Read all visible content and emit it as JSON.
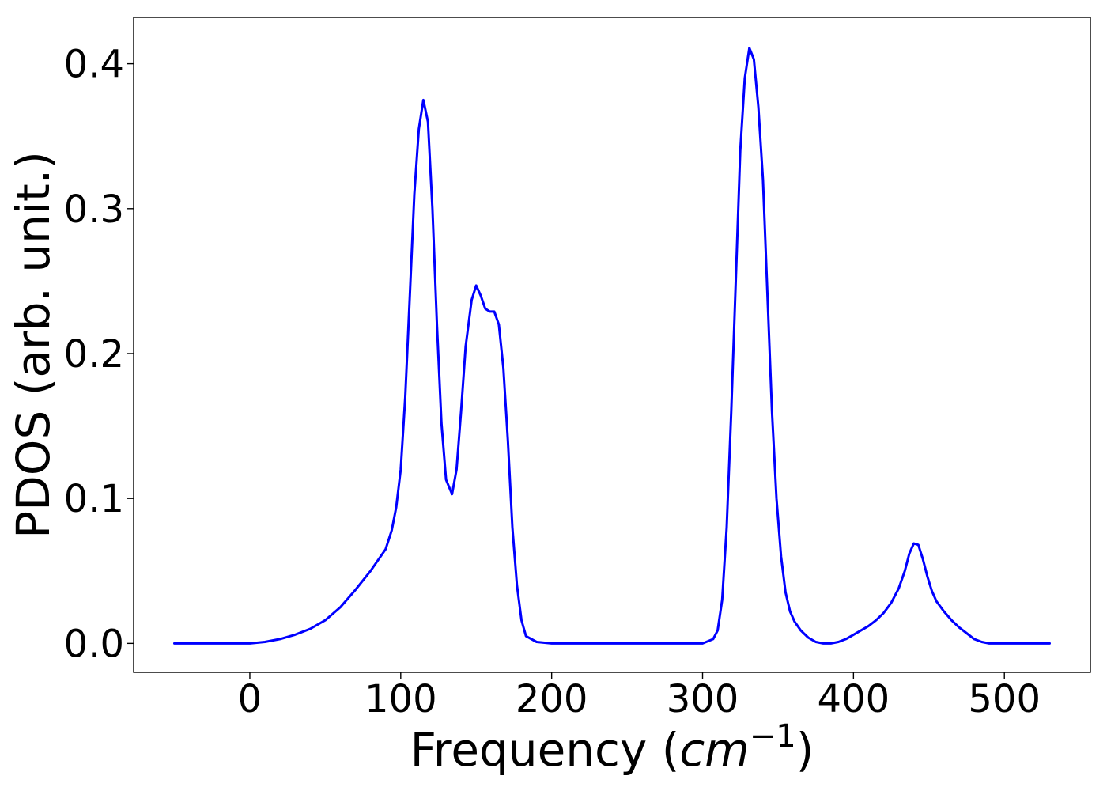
{
  "chart_data": {
    "type": "line",
    "title": "",
    "xlabel_text": "Frequency (",
    "xlabel_unit": "cm",
    "xlabel_exponent": "−1",
    "xlabel_close": ")",
    "ylabel": "PDOS (arb. unit.)",
    "xlim": [
      -77,
      557
    ],
    "ylim": [
      -0.02,
      0.432
    ],
    "xticks": [
      0,
      100,
      200,
      300,
      400,
      500
    ],
    "xtick_labels": [
      "0",
      "100",
      "200",
      "300",
      "400",
      "500"
    ],
    "yticks": [
      0.0,
      0.1,
      0.2,
      0.3,
      0.4
    ],
    "ytick_labels": [
      "0.0",
      "0.1",
      "0.2",
      "0.3",
      "0.4"
    ],
    "grid": false,
    "series": [
      {
        "color": "#0000ff",
        "x": [
          -50,
          0,
          10,
          20,
          30,
          40,
          50,
          60,
          70,
          80,
          90,
          94,
          97,
          100,
          103,
          106,
          109,
          112,
          115,
          118,
          121,
          124,
          127,
          130,
          134,
          137,
          140,
          143,
          147,
          150,
          153,
          156,
          159,
          162,
          165,
          168,
          171,
          174,
          177,
          180,
          183,
          190,
          200,
          250,
          300,
          307,
          310,
          313,
          316,
          319,
          322,
          325,
          328,
          331,
          334,
          337,
          340,
          343,
          346,
          349,
          352,
          355,
          358,
          361,
          365,
          370,
          375,
          380,
          385,
          390,
          395,
          400,
          405,
          410,
          415,
          420,
          425,
          430,
          434,
          437,
          440,
          443,
          446,
          449,
          452,
          455,
          460,
          465,
          470,
          475,
          480,
          485,
          490,
          500,
          530
        ],
        "y": [
          0.0,
          0.0,
          0.001,
          0.003,
          0.006,
          0.01,
          0.016,
          0.025,
          0.037,
          0.05,
          0.065,
          0.078,
          0.094,
          0.12,
          0.17,
          0.24,
          0.31,
          0.355,
          0.375,
          0.36,
          0.3,
          0.22,
          0.152,
          0.113,
          0.103,
          0.12,
          0.16,
          0.205,
          0.237,
          0.247,
          0.24,
          0.231,
          0.229,
          0.229,
          0.22,
          0.19,
          0.14,
          0.08,
          0.04,
          0.016,
          0.005,
          0.001,
          0.0,
          0.0,
          0.0,
          0.003,
          0.009,
          0.03,
          0.08,
          0.16,
          0.25,
          0.34,
          0.39,
          0.411,
          0.403,
          0.37,
          0.32,
          0.24,
          0.16,
          0.1,
          0.06,
          0.035,
          0.022,
          0.015,
          0.009,
          0.004,
          0.001,
          0.0,
          0.0,
          0.001,
          0.003,
          0.006,
          0.009,
          0.012,
          0.016,
          0.021,
          0.028,
          0.038,
          0.05,
          0.062,
          0.069,
          0.068,
          0.058,
          0.046,
          0.036,
          0.029,
          0.022,
          0.016,
          0.011,
          0.007,
          0.003,
          0.001,
          0.0,
          0.0,
          0.0
        ]
      }
    ]
  }
}
